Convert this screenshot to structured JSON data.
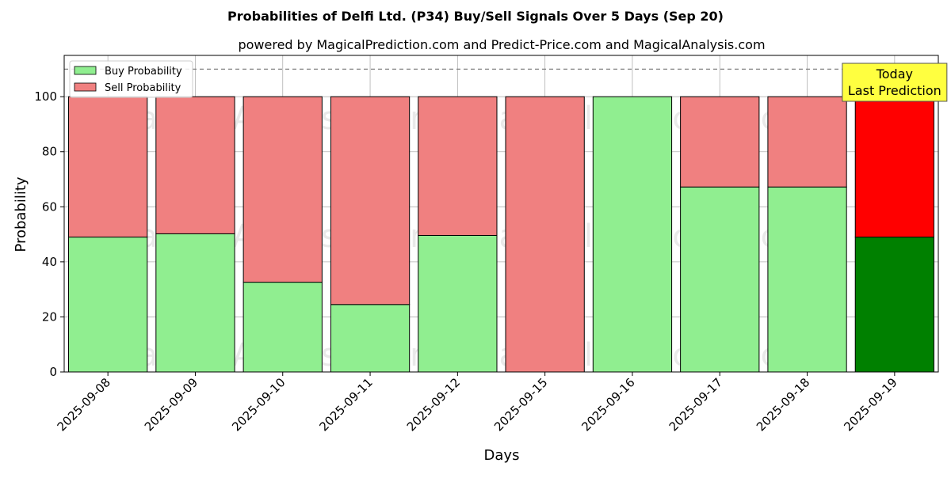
{
  "chart_data": {
    "type": "bar",
    "stacked": true,
    "title": "Probabilities of Delfi Ltd. (P34) Buy/Sell Signals Over 5 Days (Sep 20)",
    "subtitle": "powered by MagicalPrediction.com and Predict-Price.com and MagicalAnalysis.com",
    "xlabel": "Days",
    "ylabel": "Probability",
    "ylim": [
      0,
      115
    ],
    "yticks": [
      0,
      20,
      40,
      60,
      80,
      100
    ],
    "grid": true,
    "legend_position": "top-left",
    "categories": [
      "2025-09-08",
      "2025-09-09",
      "2025-09-10",
      "2025-09-11",
      "2025-09-12",
      "2025-09-15",
      "2025-09-16",
      "2025-09-17",
      "2025-09-18",
      "2025-09-19"
    ],
    "series": [
      {
        "name": "Buy Probability",
        "color": "#90ee90",
        "values": [
          49,
          50.2,
          32.6,
          24.5,
          49.6,
          0,
          100,
          67.2,
          67.2,
          49
        ]
      },
      {
        "name": "Sell Probability",
        "color": "#f08080",
        "values": [
          51,
          49.8,
          67.4,
          75.5,
          50.4,
          100,
          0,
          32.8,
          32.8,
          51
        ]
      }
    ],
    "highlight": {
      "index": 9,
      "buy_color": "#008000",
      "sell_color": "#ff0000",
      "annotation_lines": [
        "Today",
        "Last Prediction"
      ],
      "annotation_color": "#ffff40"
    },
    "reference_line": {
      "y": 110,
      "style": "dashed"
    },
    "watermarks": [
      "MagicalAnalysis.com",
      "MagicalPrediction.com"
    ]
  }
}
